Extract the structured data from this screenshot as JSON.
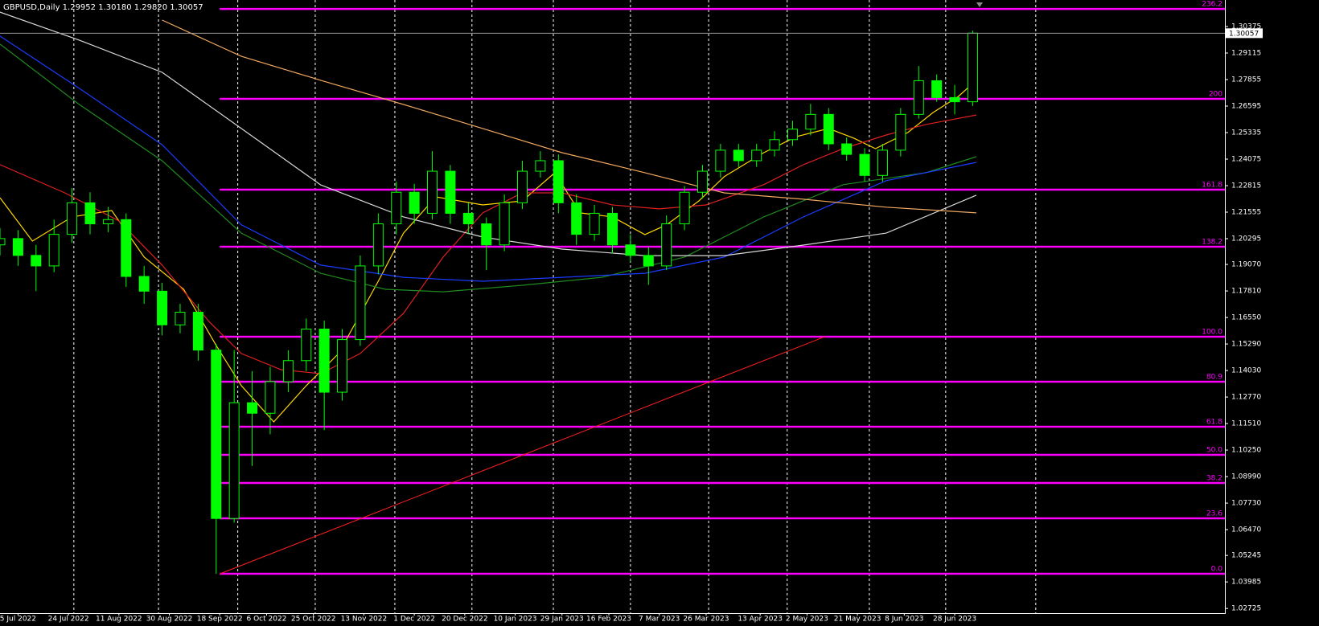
{
  "chart_data": {
    "type": "candlestick",
    "header": "GBPUSD,Daily  1.29952 1.30180 1.29820 1.30057",
    "x": [
      0,
      5,
      10,
      15,
      20,
      25,
      30,
      35,
      40,
      45,
      50,
      55,
      60,
      65,
      70,
      75,
      80,
      85,
      90,
      95,
      100,
      105,
      110,
      115,
      120,
      125,
      130,
      135,
      140,
      145,
      150,
      155,
      160,
      165,
      170,
      175,
      180,
      185,
      190,
      195,
      200,
      205,
      210,
      215,
      220,
      225,
      230,
      235,
      240,
      245,
      250,
      255,
      260,
      265,
      270
    ],
    "open": [
      1.2,
      1.203,
      1.195,
      1.19,
      1.205,
      1.22,
      1.21,
      1.212,
      1.185,
      1.178,
      1.162,
      1.168,
      1.15,
      1.07,
      1.125,
      1.12,
      1.135,
      1.145,
      1.16,
      1.13,
      1.155,
      1.19,
      1.21,
      1.225,
      1.215,
      1.235,
      1.215,
      1.21,
      1.2,
      1.22,
      1.235,
      1.24,
      1.22,
      1.205,
      1.215,
      1.2,
      1.195,
      1.19,
      1.21,
      1.225,
      1.235,
      1.245,
      1.24,
      1.245,
      1.25,
      1.255,
      1.262,
      1.248,
      1.243,
      1.233,
      1.245,
      1.262,
      1.278,
      1.27,
      1.268
    ],
    "high": [
      1.208,
      1.207,
      1.2,
      1.212,
      1.227,
      1.225,
      1.218,
      1.215,
      1.19,
      1.182,
      1.172,
      1.172,
      1.153,
      1.15,
      1.14,
      1.142,
      1.15,
      1.165,
      1.164,
      1.16,
      1.195,
      1.215,
      1.23,
      1.229,
      1.2445,
      1.238,
      1.22,
      1.213,
      1.224,
      1.24,
      1.2445,
      1.243,
      1.224,
      1.219,
      1.218,
      1.205,
      1.199,
      1.214,
      1.228,
      1.238,
      1.248,
      1.248,
      1.248,
      1.254,
      1.259,
      1.267,
      1.265,
      1.251,
      1.246,
      1.248,
      1.265,
      1.285,
      1.281,
      1.276,
      1.3018
    ],
    "low": [
      1.195,
      1.19,
      1.178,
      1.187,
      1.201,
      1.205,
      1.206,
      1.18,
      1.172,
      1.157,
      1.158,
      1.145,
      1.0437,
      1.068,
      1.095,
      1.11,
      1.13,
      1.14,
      1.112,
      1.126,
      1.152,
      1.186,
      1.205,
      1.21,
      1.212,
      1.21,
      1.205,
      1.188,
      1.197,
      1.217,
      1.232,
      1.215,
      1.2,
      1.202,
      1.196,
      1.192,
      1.181,
      1.188,
      1.207,
      1.222,
      1.232,
      1.237,
      1.237,
      1.242,
      1.247,
      1.252,
      1.245,
      1.24,
      1.23,
      1.23,
      1.242,
      1.26,
      1.268,
      1.262,
      1.266
    ],
    "close": [
      1.203,
      1.195,
      1.19,
      1.205,
      1.22,
      1.21,
      1.212,
      1.185,
      1.178,
      1.162,
      1.168,
      1.15,
      1.07,
      1.125,
      1.12,
      1.135,
      1.145,
      1.16,
      1.13,
      1.155,
      1.19,
      1.21,
      1.225,
      1.215,
      1.235,
      1.215,
      1.21,
      1.2,
      1.22,
      1.235,
      1.24,
      1.22,
      1.205,
      1.215,
      1.2,
      1.195,
      1.19,
      1.21,
      1.225,
      1.235,
      1.245,
      1.24,
      1.245,
      1.25,
      1.255,
      1.262,
      1.248,
      1.243,
      1.233,
      1.245,
      1.262,
      1.278,
      1.27,
      1.268,
      1.3006
    ],
    "candle_color": "#00ff00",
    "xlim": [
      0,
      340
    ],
    "ylim": [
      1.02502,
      1.31635
    ],
    "xticks": [
      {
        "value": 5,
        "label": "5 Jul 2022"
      },
      {
        "value": 19,
        "label": "24 Jul 2022"
      },
      {
        "value": 33,
        "label": "11 Aug 2022"
      },
      {
        "value": 47,
        "label": "30 Aug 2022"
      },
      {
        "value": 61,
        "label": "18 Sep 2022"
      },
      {
        "value": 74,
        "label": "6 Oct 2022"
      },
      {
        "value": 87,
        "label": "25 Oct 2022"
      },
      {
        "value": 101,
        "label": "13 Nov 2022"
      },
      {
        "value": 115,
        "label": "1 Dec 2022"
      },
      {
        "value": 129,
        "label": "20 Dec 2022"
      },
      {
        "value": 143,
        "label": "10 Jan 2023"
      },
      {
        "value": 156,
        "label": "29 Jan 2023"
      },
      {
        "value": 169,
        "label": "16 Feb 2023"
      },
      {
        "value": 183,
        "label": "7 Mar 2023"
      },
      {
        "value": 196,
        "label": "26 Mar 2023"
      },
      {
        "value": 211,
        "label": "13 Apr 2023"
      },
      {
        "value": 224,
        "label": "2 May 2023"
      },
      {
        "value": 238,
        "label": "21 May 2023"
      },
      {
        "value": 251,
        "label": "8 Jun 2023"
      },
      {
        "value": 265,
        "label": "28 Jun 2023"
      }
    ],
    "xgrid": [
      20.5,
      44,
      66,
      87.5,
      109.6,
      131,
      153.6,
      175,
      196.7,
      218.5,
      241.3,
      262.5,
      287.5
    ],
    "yticks": [
      1.30375,
      1.29115,
      1.27855,
      1.26595,
      1.25335,
      1.24075,
      1.22815,
      1.21555,
      1.20295,
      {
        "value": 1.1907,
        "label": "1.19070"
      },
      {
        "value": 1.1781,
        "label": "1.17810"
      },
      {
        "value": 1.1655,
        "label": "1.16550"
      },
      {
        "value": 1.1529,
        "label": "1.15290"
      },
      {
        "value": 1.1403,
        "label": "1.14030"
      },
      {
        "value": 1.1277,
        "label": "1.12770"
      },
      {
        "value": 1.1151,
        "label": "1.11510"
      },
      {
        "value": 1.1025,
        "label": "1.10250"
      },
      {
        "value": 1.0899,
        "label": "1.08990"
      },
      {
        "value": 1.0773,
        "label": "1.07730"
      },
      {
        "value": 1.0647,
        "label": "1.06470"
      },
      1.05245,
      1.03985,
      1.02725
    ],
    "current_price": 1.30057,
    "overlays": [
      {
        "color": "#ffd700",
        "x": [
          0,
          9,
          20,
          31,
          40,
          51,
          60,
          67,
          76,
          85,
          94,
          105,
          112,
          121,
          134,
          145,
          154,
          161,
          170,
          179,
          185,
          194,
          201,
          212,
          221,
          230,
          237,
          243,
          252,
          259,
          266,
          271
        ],
        "values": [
          1.2224,
          1.2018,
          1.2133,
          1.2163,
          1.1942,
          1.1789,
          1.1522,
          1.1331,
          1.1159,
          1.1331,
          1.1484,
          1.1827,
          1.2056,
          1.2228,
          1.219,
          1.2209,
          1.2343,
          1.2152,
          1.2133,
          1.2049,
          1.2095,
          1.2209,
          1.2324,
          1.2438,
          1.2514,
          1.2553,
          1.2507,
          1.2457,
          1.2534,
          1.2629,
          1.2705,
          1.2782
        ]
      },
      {
        "color": "#e02020",
        "x": [
          0,
          18,
          33,
          45,
          58,
          67,
          78,
          89,
          100,
          112,
          123,
          134,
          145,
          156,
          170,
          183,
          196,
          212,
          223,
          234,
          246,
          257,
          271
        ],
        "values": [
          1.2381,
          1.2247,
          1.2114,
          1.1904,
          1.1636,
          1.1484,
          1.1407,
          1.1388,
          1.1484,
          1.1675,
          1.1942,
          1.2152,
          1.2247,
          1.2247,
          1.219,
          1.2171,
          1.219,
          1.2286,
          1.2381,
          1.2457,
          1.2522,
          1.2572,
          1.2617
        ]
      },
      {
        "color": "#1f8a1f",
        "x": [
          0,
          22,
          45,
          67,
          89,
          107,
          123,
          145,
          167,
          190,
          212,
          234,
          257,
          271
        ],
        "values": [
          1.2954,
          1.2667,
          1.24,
          1.2056,
          1.1865,
          1.1789,
          1.1777,
          1.1808,
          1.1846,
          1.1942,
          1.2133,
          1.2286,
          1.2343,
          1.2419
        ]
      },
      {
        "color": "#1a3cff",
        "x": [
          0,
          22,
          45,
          67,
          89,
          112,
          134,
          156,
          179,
          201,
          223,
          246,
          271
        ],
        "values": [
          1.2992,
          1.2744,
          1.2476,
          1.2095,
          1.1904,
          1.1846,
          1.1827,
          1.1846,
          1.1865,
          1.1942,
          1.2133,
          1.2305,
          1.2392
        ]
      },
      {
        "color": "#d8d8d8",
        "x": [
          0,
          22,
          45,
          67,
          89,
          112,
          134,
          156,
          179,
          201,
          223,
          246,
          271
        ],
        "values": [
          1.3106,
          1.2973,
          1.282,
          1.2553,
          1.2285,
          1.2133,
          1.2037,
          1.198,
          1.1949,
          1.1949,
          1.1999,
          1.2056,
          1.2236
        ]
      },
      {
        "color": "#f0a860",
        "x": [
          45,
          67,
          89,
          112,
          134,
          156,
          179,
          201,
          223,
          246,
          271
        ],
        "values": [
          1.3068,
          1.2896,
          1.2782,
          1.2667,
          1.2553,
          1.2438,
          1.2343,
          1.2247,
          1.2217,
          1.2179,
          1.2152
        ]
      }
    ],
    "trendline": {
      "color": "#ff2020",
      "x": [
        61,
        229
      ],
      "values": [
        1.0437,
        1.1564
      ]
    },
    "fibo": {
      "color": "#ff00ff",
      "x_start": 61,
      "levels": [
        {
          "label": "236.2",
          "value": 1.3121
        },
        {
          "label": "200",
          "value": 1.26939
        },
        {
          "label": "161.8",
          "value": 1.22624
        },
        {
          "label": "138.2",
          "value": 1.19913
        },
        {
          "label": "100.0",
          "value": 1.15637
        },
        {
          "label": "80.9",
          "value": 1.13498
        },
        {
          "label": "61.8",
          "value": 1.1136
        },
        {
          "label": "50.0",
          "value": 1.10024
        },
        {
          "label": "38.2",
          "value": 1.08688
        },
        {
          "label": "23.6",
          "value": 1.07008
        },
        {
          "label": "0.0",
          "value": 1.04373
        }
      ]
    }
  }
}
